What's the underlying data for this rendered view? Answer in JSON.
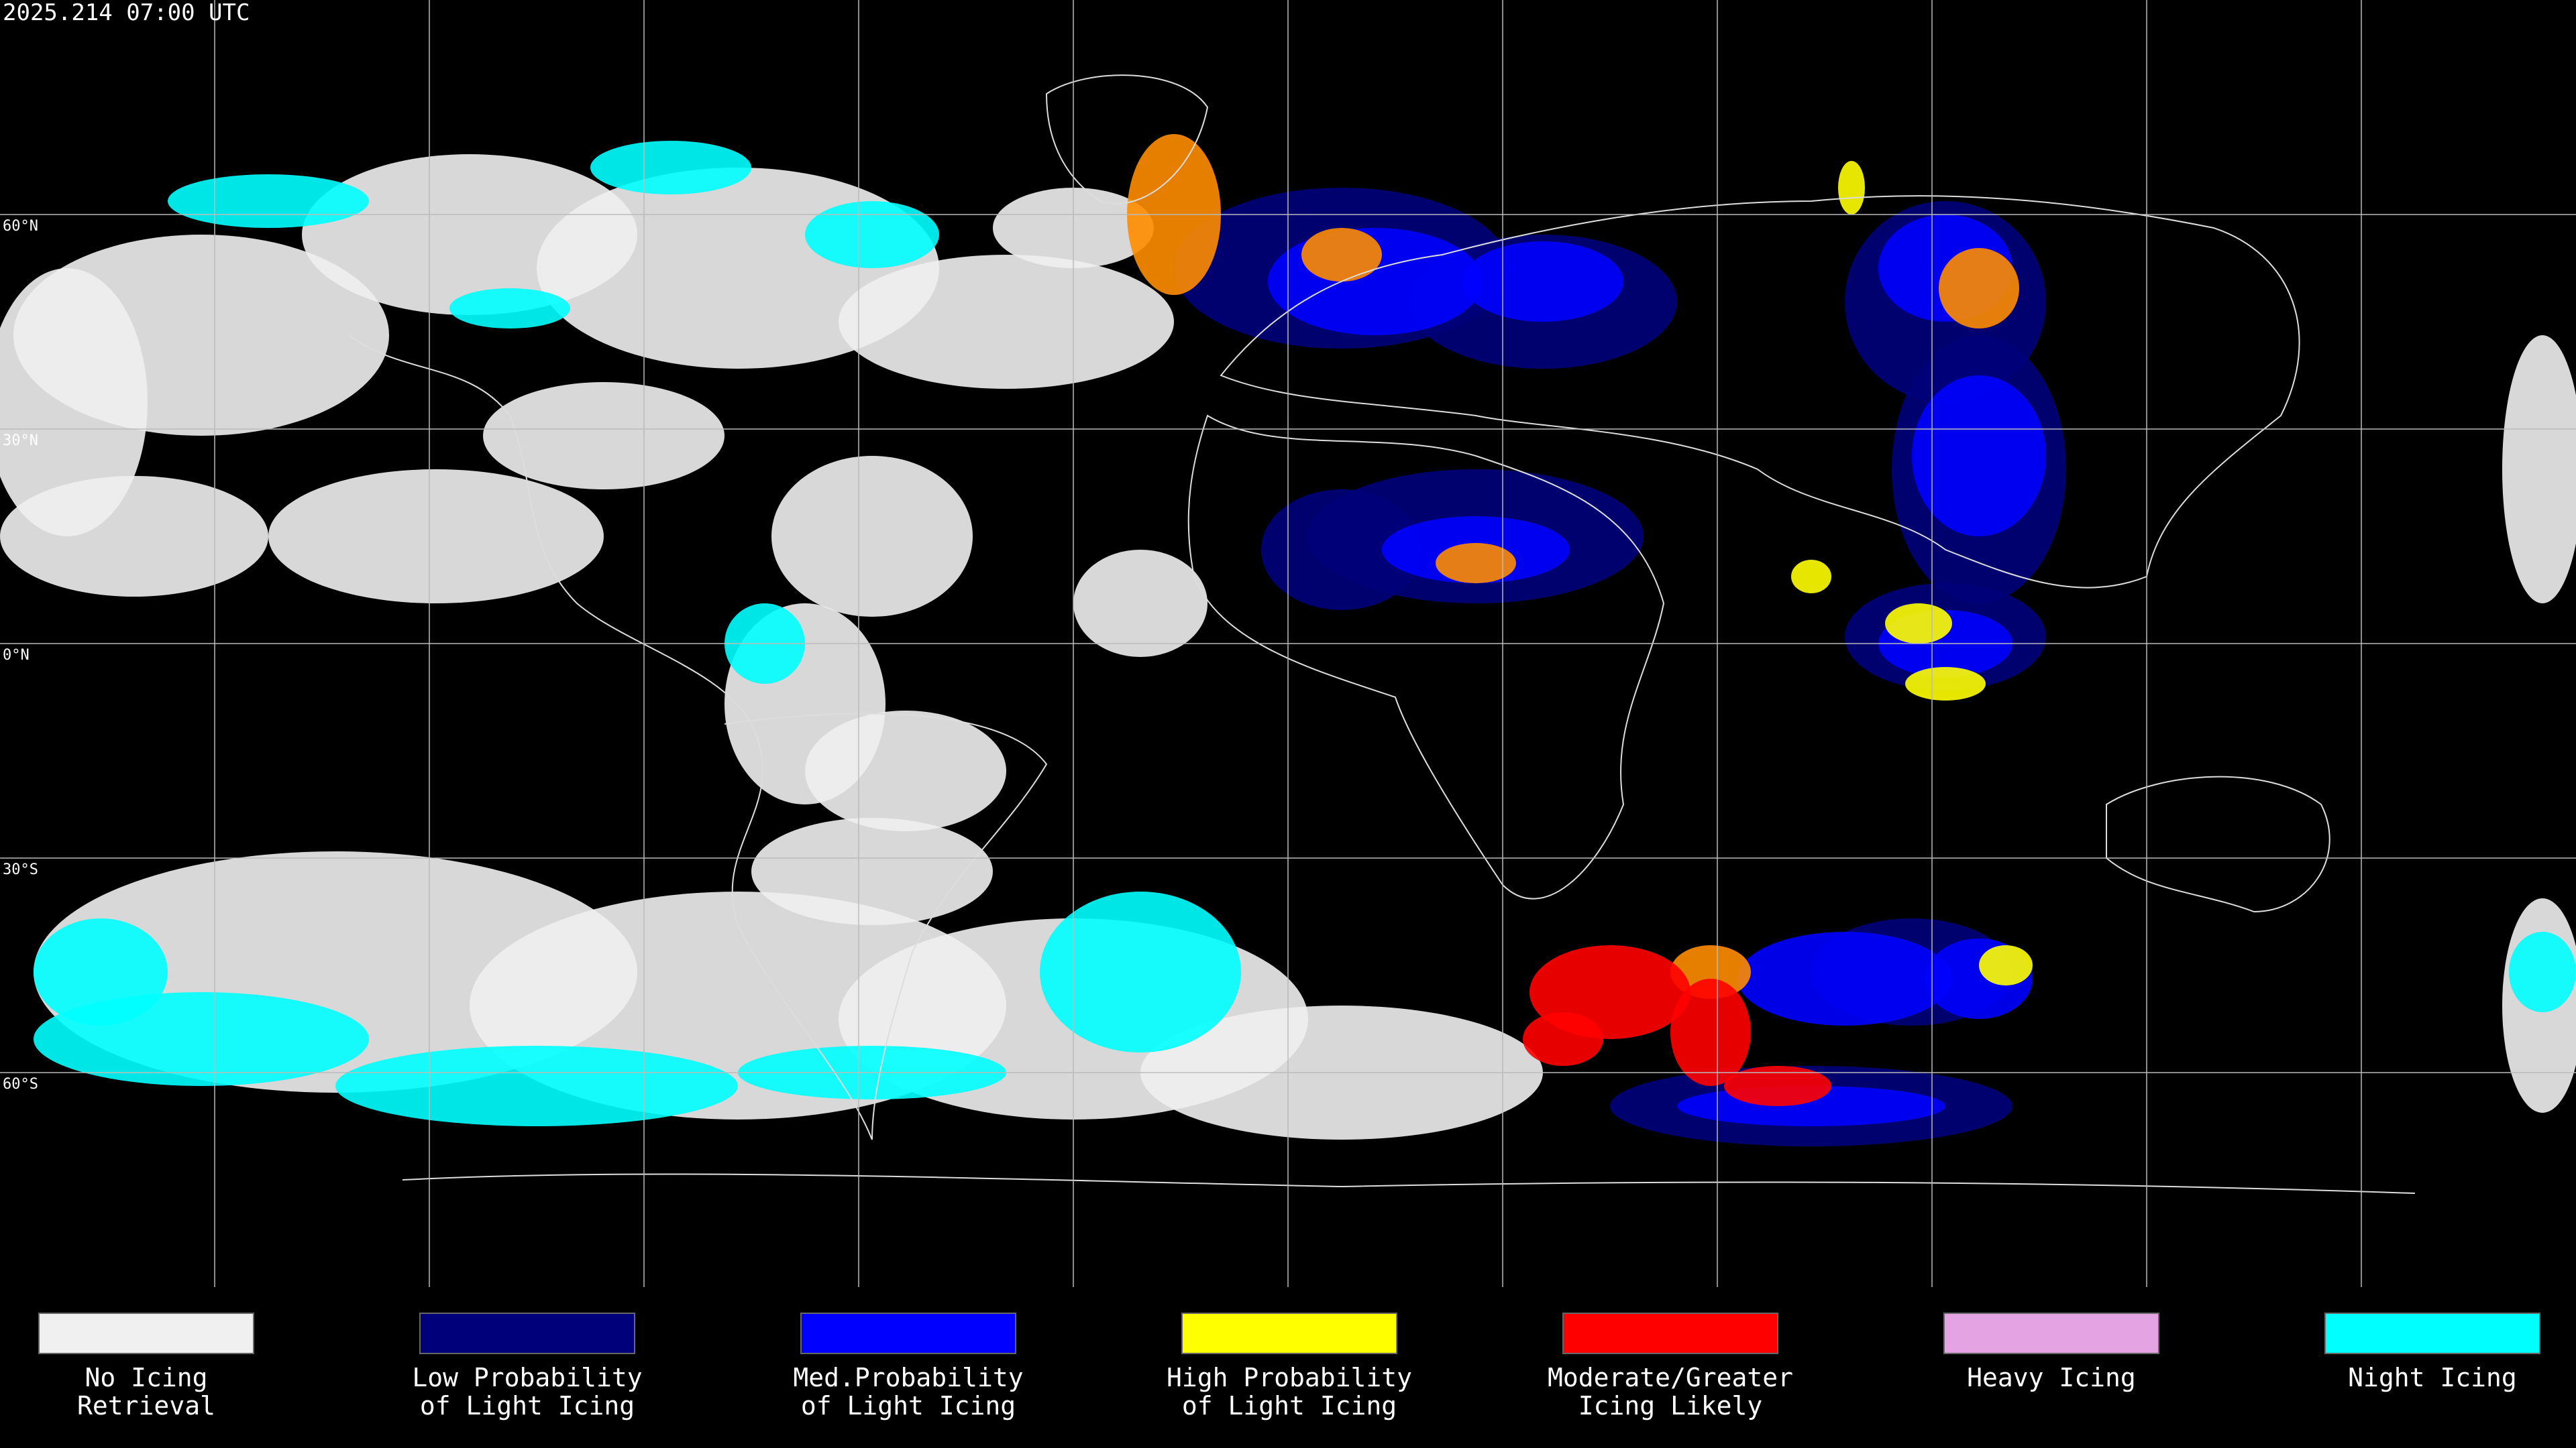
{
  "header": {
    "title": "2025.214 07:00 UTC"
  },
  "map": {
    "latitude_labels": [
      "60°N",
      "30°N",
      "0°N",
      "30°S",
      "60°S"
    ]
  },
  "legend": {
    "items": [
      {
        "lines": [
          "No Icing",
          "Retrieval"
        ],
        "color": "#f0f0f0"
      },
      {
        "lines": [
          "Low Probability",
          "of Light Icing"
        ],
        "color": "#00007a"
      },
      {
        "lines": [
          "Med.Probability",
          "of Light Icing"
        ],
        "color": "#0000ff"
      },
      {
        "lines": [
          "High Probability",
          "of Light Icing"
        ],
        "color": "#ffff00"
      },
      {
        "lines": [
          "Moderate/Greater",
          "Icing Likely"
        ],
        "color": "#ff0000"
      },
      {
        "lines": [
          "Heavy Icing"
        ],
        "color": "#e4a4e4"
      },
      {
        "lines": [
          "Night Icing"
        ],
        "color": "#00ffff"
      }
    ]
  }
}
